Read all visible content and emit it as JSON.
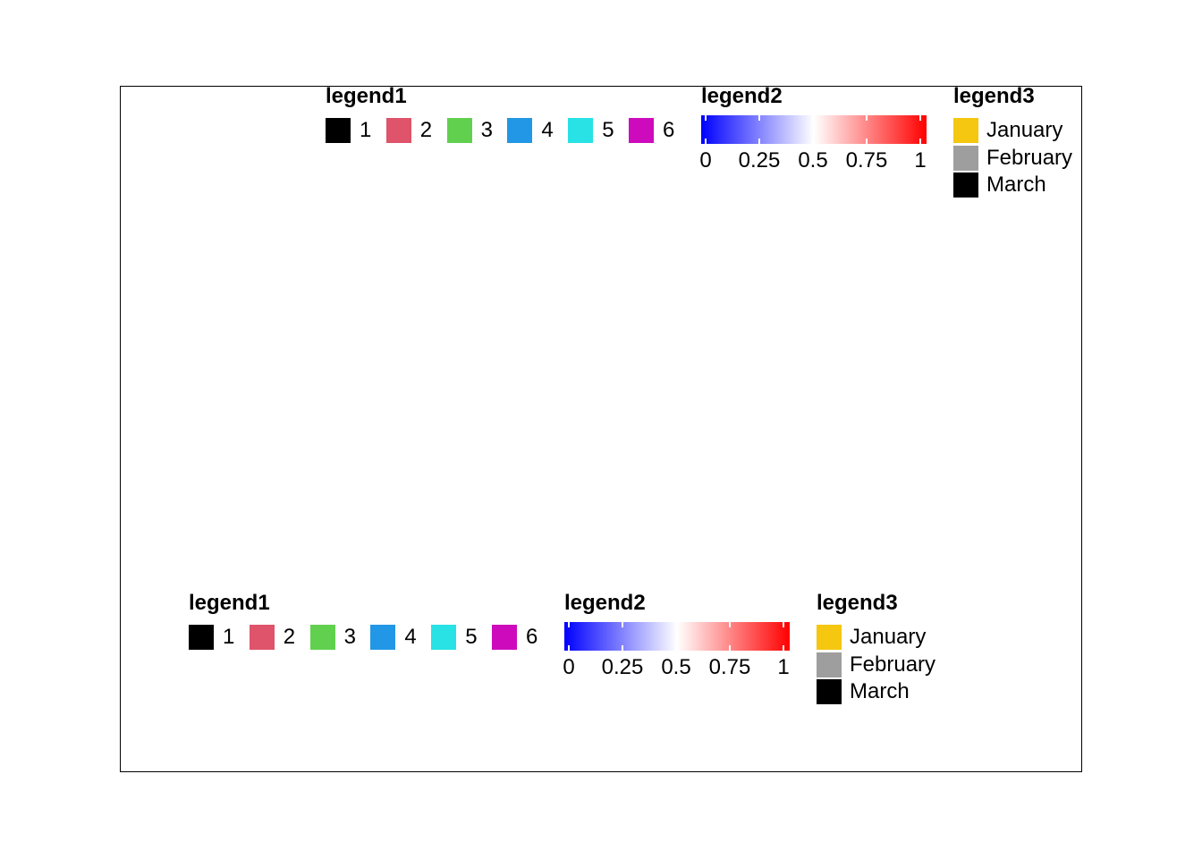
{
  "chart_data": {
    "type": "legend",
    "legend_groups": [
      {
        "legend1": {
          "title": "legend1",
          "items": [
            {
              "label": "1",
              "color": "#000000"
            },
            {
              "label": "2",
              "color": "#DF536B"
            },
            {
              "label": "3",
              "color": "#61D04F"
            },
            {
              "label": "4",
              "color": "#2297E6"
            },
            {
              "label": "5",
              "color": "#28E2E5"
            },
            {
              "label": "6",
              "color": "#CD0BBC"
            }
          ]
        },
        "legend2": {
          "title": "legend2",
          "colors": [
            "#0000FF",
            "#FFFFFF",
            "#FF0000"
          ],
          "range": [
            0,
            1
          ],
          "ticks": [
            "0",
            "0.25",
            "0.5",
            "0.75",
            "1"
          ]
        },
        "legend3": {
          "title": "legend3",
          "items": [
            {
              "label": "January",
              "color": "#F5C710"
            },
            {
              "label": "February",
              "color": "#9E9E9E"
            },
            {
              "label": "March",
              "color": "#000000"
            }
          ]
        }
      },
      {
        "legend1": {
          "title": "legend1",
          "items": [
            {
              "label": "1",
              "color": "#000000"
            },
            {
              "label": "2",
              "color": "#DF536B"
            },
            {
              "label": "3",
              "color": "#61D04F"
            },
            {
              "label": "4",
              "color": "#2297E6"
            },
            {
              "label": "5",
              "color": "#28E2E5"
            },
            {
              "label": "6",
              "color": "#CD0BBC"
            }
          ]
        },
        "legend2": {
          "title": "legend2",
          "colors": [
            "#0000FF",
            "#FFFFFF",
            "#FF0000"
          ],
          "range": [
            0,
            1
          ],
          "ticks": [
            "0",
            "0.25",
            "0.5",
            "0.75",
            "1"
          ]
        },
        "legend3": {
          "title": "legend3",
          "items": [
            {
              "label": "January",
              "color": "#F5C710"
            },
            {
              "label": "February",
              "color": "#9E9E9E"
            },
            {
              "label": "March",
              "color": "#000000"
            }
          ]
        }
      }
    ]
  }
}
